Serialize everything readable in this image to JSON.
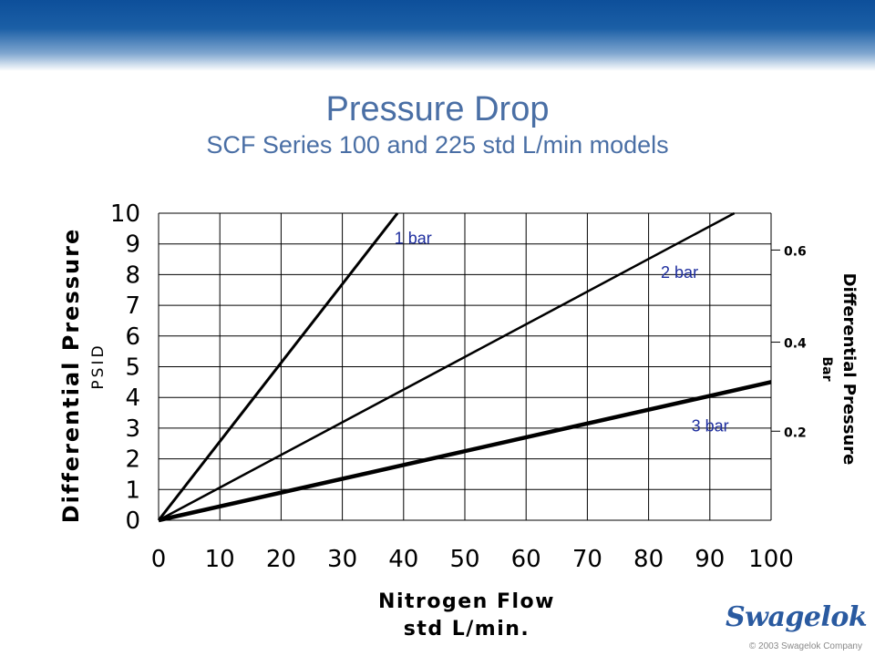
{
  "header": {
    "title": "Pressure Drop",
    "subtitle": "SCF Series 100 and 225 std L/min models"
  },
  "chart_data": {
    "type": "line",
    "xlim": [
      0,
      100
    ],
    "ylim": [
      0,
      10
    ],
    "x_ticks": [
      "0",
      "10",
      "20",
      "30",
      "40",
      "50",
      "60",
      "70",
      "80",
      "90",
      "100"
    ],
    "y_ticks": [
      "0",
      "1",
      "2",
      "3",
      "4",
      "5",
      "6",
      "7",
      "8",
      "9",
      "10"
    ],
    "xlabel_line1": "Nitrogen Flow",
    "xlabel_line2": "std L/min.",
    "ylabel_line1": "Differential Pressure",
    "ylabel_line2": "PSID",
    "y2label_line1": "Differential Pressure",
    "y2label_line2": "Bar",
    "y2_ticks": [
      {
        "label": "0.2",
        "psi": 2.9
      },
      {
        "label": "0.4",
        "psi": 5.8
      },
      {
        "label": "0.6",
        "psi": 8.8
      }
    ],
    "grid": true,
    "line_color": "#000000",
    "label_color": "#1f2f9f",
    "series": [
      {
        "name": "1 bar",
        "x": [
          0,
          39
        ],
        "y": [
          0,
          10
        ],
        "thickness": "medium",
        "label_x": 38.5,
        "label_y": 9.0
      },
      {
        "name": "2 bar",
        "x": [
          0,
          94
        ],
        "y": [
          0,
          10
        ],
        "thickness": "thin",
        "label_x": 82,
        "label_y": 7.9
      },
      {
        "name": "3 bar",
        "x": [
          0,
          100
        ],
        "y": [
          0,
          4.5
        ],
        "thickness": "thick",
        "label_x": 87,
        "label_y": 2.9
      }
    ]
  },
  "footer": {
    "logo_text": "Swagelok",
    "copyright": "© 2003 Swagelok Company"
  }
}
